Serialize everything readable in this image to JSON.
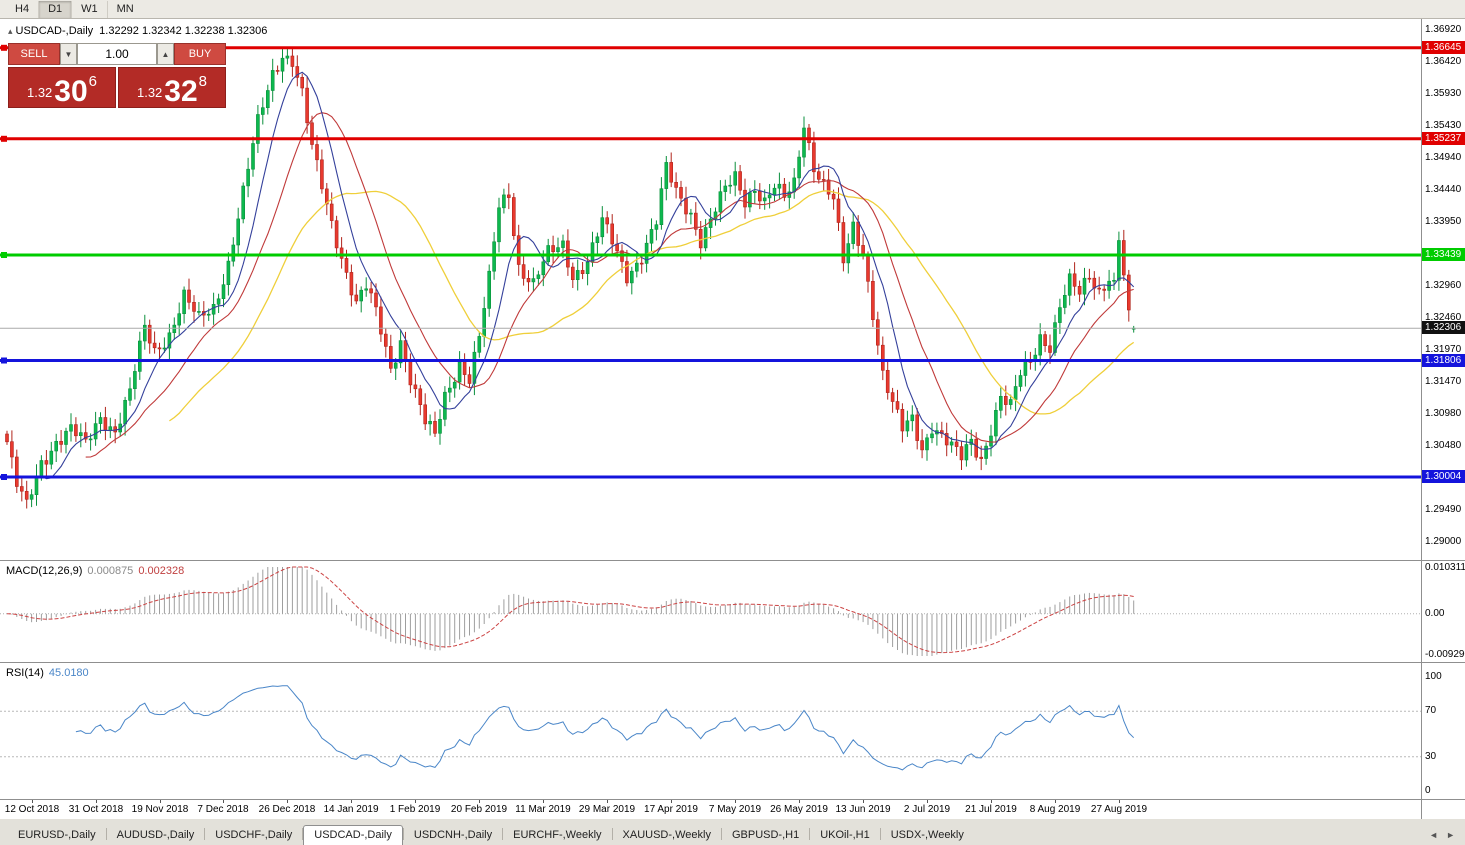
{
  "toolbar": {
    "timeframes": [
      "H4",
      "D1",
      "W1",
      "MN"
    ],
    "active": "D1"
  },
  "chart": {
    "title_symbol": "USDCAD-,Daily",
    "ohlc_text": "1.32292 1.32342 1.32238 1.32306",
    "axis_ticks": [
      "1.36920",
      "1.36420",
      "1.35930",
      "1.35430",
      "1.34940",
      "1.34440",
      "1.33950",
      "1.33450",
      "1.32960",
      "1.32460",
      "1.31970",
      "1.31470",
      "1.30980",
      "1.30480",
      "1.29990",
      "1.29490",
      "1.29000"
    ],
    "lines": [
      {
        "label": "1.36645",
        "price": 1.36645,
        "color": "#e00000"
      },
      {
        "label": "1.35237",
        "price": 1.35237,
        "color": "#e00000"
      },
      {
        "label": "1.33439",
        "price": 1.33439,
        "color": "#00cc00"
      },
      {
        "label": "1.31806",
        "price": 1.31806,
        "color": "#1414dc"
      },
      {
        "label": "1.30004",
        "price": 1.30004,
        "color": "#1414dc"
      }
    ],
    "current_price": {
      "label": "1.32306",
      "price": 1.32306
    }
  },
  "trade_panel": {
    "sell_label": "SELL",
    "buy_label": "BUY",
    "volume": "1.00",
    "bid": {
      "prefix": "1.32",
      "pips": "30",
      "frac": "6"
    },
    "ask": {
      "prefix": "1.32",
      "pips": "32",
      "frac": "8"
    }
  },
  "macd": {
    "name": "MACD(12,26,9)",
    "value_main": "0.000875",
    "value_signal": "0.002328",
    "axis_top": "0.010311",
    "axis_zero": "0.00",
    "axis_bottom": "-0.0092903"
  },
  "rsi": {
    "name": "RSI(14)",
    "value": "45.0180",
    "axis": [
      "100",
      "70",
      "30",
      "0"
    ]
  },
  "dates": [
    "12 Oct 2018",
    "31 Oct 2018",
    "19 Nov 2018",
    "7 Dec 2018",
    "26 Dec 2018",
    "14 Jan 2019",
    "1 Feb 2019",
    "20 Feb 2019",
    "11 Mar 2019",
    "29 Mar 2019",
    "17 Apr 2019",
    "7 May 2019",
    "26 May 2019",
    "13 Jun 2019",
    "2 Jul 2019",
    "21 Jul 2019",
    "8 Aug 2019",
    "27 Aug 2019"
  ],
  "tabs": {
    "items": [
      "EURUSD-,Daily",
      "AUDUSD-,Daily",
      "USDCHF-,Daily",
      "USDCAD-,Daily",
      "USDCNH-,Daily",
      "EURCHF-,Weekly",
      "XAUUSD-,Weekly",
      "GBPUSD-,H1",
      "UKOil-,H1",
      "USDX-,Weekly"
    ],
    "active_index": 3,
    "left_arrow": "◄",
    "right_arrow": "►"
  },
  "chart_data": {
    "type": "candlestick",
    "symbol": "USDCAD-",
    "timeframe": "Daily",
    "y_range": {
      "top": 1.3709,
      "bottom": 1.2872
    },
    "bar_count": 230,
    "first_label_bar": 5,
    "bars_per_label": 13,
    "last_bar": {
      "open": 1.32292,
      "high": 1.32342,
      "low": 1.32238,
      "close": 1.32306
    },
    "price_anchors": [
      [
        0,
        1.3055
      ],
      [
        2,
        1.2985
      ],
      [
        4,
        1.2952
      ],
      [
        7,
        1.3025
      ],
      [
        10,
        1.3058
      ],
      [
        13,
        1.3072
      ],
      [
        16,
        1.3048
      ],
      [
        19,
        1.3095
      ],
      [
        22,
        1.3075
      ],
      [
        25,
        1.313
      ],
      [
        28,
        1.3228
      ],
      [
        30,
        1.3195
      ],
      [
        33,
        1.3225
      ],
      [
        36,
        1.328
      ],
      [
        39,
        1.324
      ],
      [
        42,
        1.3262
      ],
      [
        45,
        1.3335
      ],
      [
        48,
        1.344
      ],
      [
        51,
        1.3545
      ],
      [
        54,
        1.3625
      ],
      [
        56,
        1.3658
      ],
      [
        58,
        1.3648
      ],
      [
        60,
        1.3592
      ],
      [
        62,
        1.3505
      ],
      [
        65,
        1.342
      ],
      [
        68,
        1.3345
      ],
      [
        71,
        1.327
      ],
      [
        73,
        1.3292
      ],
      [
        75,
        1.3252
      ],
      [
        78,
        1.317
      ],
      [
        80,
        1.3215
      ],
      [
        82,
        1.3155
      ],
      [
        85,
        1.3082
      ],
      [
        87,
        1.306
      ],
      [
        89,
        1.3125
      ],
      [
        92,
        1.318
      ],
      [
        94,
        1.3155
      ],
      [
        96,
        1.3215
      ],
      [
        98,
        1.3302
      ],
      [
        100,
        1.3418
      ],
      [
        102,
        1.3442
      ],
      [
        104,
        1.333
      ],
      [
        107,
        1.3298
      ],
      [
        110,
        1.3342
      ],
      [
        113,
        1.336
      ],
      [
        115,
        1.3315
      ],
      [
        118,
        1.3335
      ],
      [
        121,
        1.3392
      ],
      [
        123,
        1.3362
      ],
      [
        126,
        1.3315
      ],
      [
        129,
        1.3345
      ],
      [
        132,
        1.3392
      ],
      [
        134,
        1.3475
      ],
      [
        136,
        1.3442
      ],
      [
        139,
        1.3412
      ],
      [
        141,
        1.3368
      ],
      [
        143,
        1.3395
      ],
      [
        146,
        1.3442
      ],
      [
        148,
        1.3465
      ],
      [
        150,
        1.3432
      ],
      [
        152,
        1.3452
      ],
      [
        154,
        1.3425
      ],
      [
        156,
        1.3445
      ],
      [
        158,
        1.3428
      ],
      [
        160,
        1.3455
      ],
      [
        162,
        1.3552
      ],
      [
        164,
        1.3485
      ],
      [
        166,
        1.3452
      ],
      [
        168,
        1.3425
      ],
      [
        170,
        1.333
      ],
      [
        172,
        1.3388
      ],
      [
        174,
        1.3352
      ],
      [
        176,
        1.3258
      ],
      [
        178,
        1.3158
      ],
      [
        180,
        1.3108
      ],
      [
        182,
        1.3072
      ],
      [
        184,
        1.3092
      ],
      [
        186,
        1.3048
      ],
      [
        188,
        1.3082
      ],
      [
        190,
        1.3062
      ],
      [
        192,
        1.3042
      ],
      [
        194,
        1.3028
      ],
      [
        196,
        1.3058
      ],
      [
        198,
        1.3032
      ],
      [
        200,
        1.3078
      ],
      [
        202,
        1.3122
      ],
      [
        204,
        1.3105
      ],
      [
        206,
        1.3158
      ],
      [
        208,
        1.3182
      ],
      [
        210,
        1.3222
      ],
      [
        212,
        1.3205
      ],
      [
        214,
        1.3262
      ],
      [
        216,
        1.3298
      ],
      [
        218,
        1.3282
      ],
      [
        220,
        1.3315
      ],
      [
        222,
        1.3292
      ],
      [
        224,
        1.3312
      ],
      [
        225,
        1.3298
      ],
      [
        226,
        1.3368
      ],
      [
        227,
        1.3308
      ],
      [
        228,
        1.3242
      ],
      [
        229,
        1.3231
      ]
    ],
    "moving_averages": [
      {
        "period": 34,
        "color": "#efcf3a",
        "width": 1.3
      },
      {
        "period": 17,
        "color": "#c03a3a",
        "width": 1.1
      },
      {
        "period": 8,
        "color": "#34409b",
        "width": 1.1
      }
    ],
    "up_color": "#0db84e",
    "up_stroke": "#0a8f3c",
    "down_color": "#e8392e",
    "down_stroke": "#b0241c",
    "macd": {
      "fast": 12,
      "slow": 26,
      "signal": 9,
      "scale_max": 0.0103,
      "scale_min": -0.0093,
      "histogram_color": "#9e9e9e",
      "signal_color": "#cc4444"
    },
    "rsi": {
      "period": 14,
      "color": "#4a86c8",
      "levels": [
        70,
        30
      ]
    }
  }
}
